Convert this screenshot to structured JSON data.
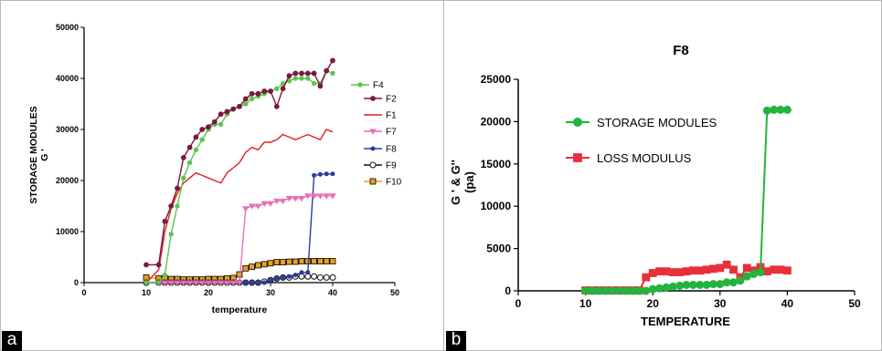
{
  "panels": {
    "a": "a",
    "b": "b"
  },
  "chart_data": [
    {
      "type": "line",
      "title": "",
      "xlabel": "temperature",
      "ylabel": [
        "STORAGE MODULES",
        "G '"
      ],
      "xlim": [
        0,
        50
      ],
      "ylim": [
        0,
        50000
      ],
      "xticks": [
        0,
        10,
        20,
        30,
        40,
        50
      ],
      "yticks": [
        0,
        10000,
        20000,
        30000,
        40000,
        50000
      ],
      "legend": "right",
      "series": [
        {
          "name": "F4",
          "color": "#5ec44e",
          "marker": "circle",
          "marker_size": 2.2,
          "fill": true,
          "x": [
            10,
            12,
            13,
            14,
            15,
            16,
            17,
            18,
            19,
            20,
            21,
            22,
            23,
            24,
            25,
            26,
            27,
            28,
            29,
            30,
            31,
            32,
            33,
            34,
            35,
            36,
            37,
            38,
            39,
            40
          ],
          "y": [
            0,
            0,
            1500,
            9500,
            15000,
            20500,
            23500,
            26000,
            28000,
            30000,
            31000,
            31000,
            33000,
            34000,
            34500,
            35000,
            36000,
            36500,
            37000,
            37500,
            38000,
            39000,
            39500,
            40000,
            40000,
            40000,
            39000,
            39000,
            41500,
            41000
          ]
        },
        {
          "name": "F2",
          "color": "#7a1a3c",
          "marker": "circle",
          "marker_size": 2.4,
          "fill": true,
          "x": [
            10,
            12,
            13,
            14,
            15,
            16,
            17,
            18,
            19,
            20,
            21,
            22,
            23,
            24,
            25,
            26,
            27,
            28,
            29,
            30,
            31,
            32,
            33,
            34,
            35,
            36,
            37,
            38,
            39,
            40
          ],
          "y": [
            3500,
            3500,
            12000,
            15000,
            18500,
            24500,
            26500,
            28500,
            30000,
            30500,
            31500,
            33000,
            33500,
            34000,
            34500,
            36000,
            37000,
            37000,
            37500,
            37500,
            34500,
            38000,
            40500,
            41000,
            41000,
            41000,
            41000,
            38500,
            41500,
            43500
          ]
        },
        {
          "name": "F1",
          "color": "#e02020",
          "marker": "none",
          "marker_size": 0,
          "fill": true,
          "x": [
            10,
            12,
            13,
            14,
            15,
            16,
            17,
            18,
            19,
            20,
            21,
            22,
            23,
            24,
            25,
            26,
            27,
            28,
            29,
            30,
            31,
            32,
            33,
            34,
            35,
            36,
            37,
            38,
            39,
            40
          ],
          "y": [
            0,
            2500,
            10000,
            14500,
            17500,
            19500,
            20500,
            21500,
            21000,
            20500,
            20000,
            19500,
            21500,
            22500,
            23500,
            25500,
            26500,
            26000,
            27500,
            27500,
            28000,
            29000,
            28500,
            28000,
            28500,
            29000,
            28500,
            28000,
            30000,
            29500
          ]
        },
        {
          "name": "F7",
          "color": "#e76fb6",
          "marker": "triangle",
          "marker_size": 3.2,
          "fill": true,
          "x": [
            10,
            12,
            13,
            14,
            15,
            16,
            17,
            18,
            19,
            20,
            21,
            22,
            23,
            24,
            25,
            26,
            27,
            28,
            29,
            30,
            31,
            32,
            33,
            34,
            35,
            36,
            37,
            38,
            39,
            40
          ],
          "y": [
            0,
            0,
            0,
            0,
            0,
            0,
            0,
            0,
            0,
            0,
            0,
            0,
            0,
            0,
            0,
            14500,
            15000,
            15000,
            15500,
            15500,
            16000,
            16000,
            16500,
            16500,
            16500,
            17000,
            17000,
            17000,
            17000,
            17000
          ]
        },
        {
          "name": "F8",
          "color": "#2b3d9e",
          "marker": "circle",
          "marker_size": 2,
          "fill": true,
          "x": [
            10,
            12,
            13,
            14,
            15,
            16,
            17,
            18,
            19,
            20,
            21,
            22,
            23,
            24,
            25,
            26,
            27,
            28,
            29,
            30,
            31,
            32,
            33,
            34,
            35,
            36,
            37,
            38,
            39,
            40
          ],
          "y": [
            0,
            0,
            0,
            0,
            0,
            0,
            0,
            0,
            0,
            0,
            0,
            0,
            0,
            0,
            0,
            0,
            0,
            0,
            0,
            500,
            800,
            1000,
            1200,
            1500,
            2000,
            2000,
            21000,
            21200,
            21300,
            21300
          ]
        },
        {
          "name": "F9",
          "color": "#111111",
          "marker": "circle",
          "marker_size": 3,
          "fill": false,
          "x": [
            10,
            12,
            13,
            14,
            15,
            16,
            17,
            18,
            19,
            20,
            21,
            22,
            23,
            24,
            25,
            26,
            27,
            28,
            29,
            30,
            31,
            32,
            33,
            34,
            35,
            36,
            37,
            38,
            39,
            40
          ],
          "y": [
            0,
            0,
            0,
            0,
            0,
            0,
            0,
            0,
            0,
            0,
            0,
            0,
            0,
            0,
            0,
            0,
            0,
            0,
            200,
            500,
            800,
            1000,
            1000,
            1200,
            1200,
            1200,
            1200,
            1000,
            1000,
            1000
          ]
        },
        {
          "name": "F10",
          "color": "#e8a020",
          "marker": "square",
          "marker_size": 3,
          "fill": true,
          "edge": "#000000",
          "x": [
            10,
            12,
            13,
            14,
            15,
            16,
            17,
            18,
            19,
            20,
            21,
            22,
            23,
            24,
            25,
            26,
            27,
            28,
            29,
            30,
            31,
            32,
            33,
            34,
            35,
            36,
            37,
            38,
            39,
            40
          ],
          "y": [
            1000,
            800,
            800,
            700,
            700,
            600,
            600,
            600,
            600,
            700,
            700,
            700,
            800,
            900,
            1600,
            2800,
            3100,
            3400,
            3600,
            3800,
            4000,
            4000,
            4100,
            4100,
            4200,
            4200,
            4200,
            4200,
            4200,
            4200
          ]
        }
      ]
    },
    {
      "type": "line",
      "title": "F8",
      "xlabel": "TEMPERATURE",
      "ylabel": [
        "G ' & G''",
        "(pa)"
      ],
      "xlim": [
        0,
        50
      ],
      "ylim": [
        0,
        25000
      ],
      "xticks": [
        0,
        10,
        20,
        30,
        40,
        50
      ],
      "yticks": [
        0,
        5000,
        10000,
        15000,
        20000,
        25000
      ],
      "legend": "top-left",
      "series": [
        {
          "name": "STORAGE MODULES",
          "color": "#22b43c",
          "marker": "circle",
          "marker_size": 4,
          "fill": true,
          "x": [
            10,
            11,
            12,
            13,
            14,
            15,
            16,
            17,
            18,
            19,
            20,
            21,
            22,
            23,
            24,
            25,
            26,
            27,
            28,
            29,
            30,
            31,
            32,
            33,
            34,
            35,
            36,
            37,
            38,
            39,
            40
          ],
          "y": [
            0,
            0,
            0,
            0,
            0,
            0,
            0,
            0,
            0,
            0,
            200,
            300,
            400,
            500,
            600,
            700,
            700,
            700,
            700,
            800,
            800,
            1000,
            1000,
            1200,
            1700,
            2000,
            2200,
            21300,
            21400,
            21400,
            21400
          ]
        },
        {
          "name": "LOSS MODULUS",
          "color": "#e8303a",
          "marker": "square",
          "marker_size": 4,
          "fill": true,
          "x": [
            10,
            11,
            12,
            13,
            14,
            15,
            16,
            17,
            18,
            19,
            20,
            21,
            22,
            23,
            24,
            25,
            26,
            27,
            28,
            29,
            30,
            31,
            32,
            33,
            34,
            35,
            36,
            37,
            38,
            39,
            40
          ],
          "y": [
            50,
            50,
            50,
            50,
            50,
            50,
            50,
            50,
            50,
            1600,
            2100,
            2300,
            2300,
            2200,
            2200,
            2300,
            2400,
            2400,
            2500,
            2600,
            2700,
            3100,
            2500,
            1600,
            2700,
            2400,
            2800,
            2300,
            2500,
            2500,
            2400
          ]
        }
      ]
    }
  ]
}
